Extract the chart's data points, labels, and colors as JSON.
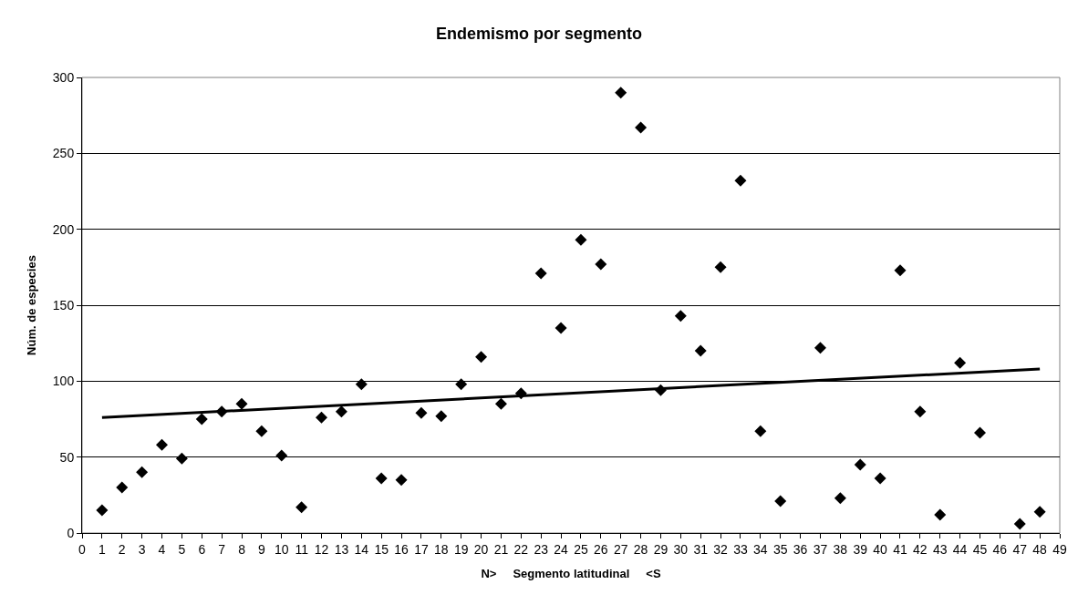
{
  "chart_data": {
    "type": "scatter",
    "title": "Endemismo por segmento",
    "xlabel": "N>     Segmento latitudinal     <S",
    "ylabel": "Núm. de especies",
    "xlim": [
      0,
      49
    ],
    "xticks": [
      0,
      1,
      2,
      3,
      4,
      5,
      6,
      7,
      8,
      9,
      10,
      11,
      12,
      13,
      14,
      15,
      16,
      17,
      18,
      19,
      20,
      21,
      22,
      23,
      24,
      25,
      26,
      27,
      28,
      29,
      30,
      31,
      32,
      33,
      34,
      35,
      36,
      37,
      38,
      39,
      40,
      41,
      42,
      43,
      44,
      45,
      46,
      47,
      48,
      49
    ],
    "ylim": [
      0,
      300
    ],
    "yticks": [
      0,
      50,
      100,
      150,
      200,
      250,
      300
    ],
    "grid": "y",
    "series": [
      {
        "marker": "diamond",
        "color": "#000000",
        "x": [
          1,
          2,
          3,
          4,
          5,
          6,
          7,
          8,
          9,
          10,
          11,
          12,
          13,
          14,
          15,
          16,
          17,
          18,
          19,
          20,
          21,
          22,
          23,
          24,
          25,
          26,
          27,
          28,
          29,
          30,
          31,
          32,
          33,
          34,
          35,
          37,
          38,
          39,
          40,
          41,
          42,
          43,
          44,
          45,
          47,
          48
        ],
        "values": [
          15,
          30,
          40,
          58,
          49,
          75,
          80,
          85,
          67,
          51,
          17,
          76,
          80,
          98,
          36,
          35,
          79,
          77,
          98,
          116,
          85,
          92,
          171,
          135,
          193,
          177,
          290,
          267,
          94,
          143,
          120,
          175,
          232,
          67,
          21,
          122,
          23,
          45,
          36,
          173,
          80,
          12,
          112,
          66,
          6,
          14
        ]
      },
      {
        "type": "line",
        "marker": "none",
        "color": "#000000",
        "x": [
          1,
          48
        ],
        "values": [
          76,
          108
        ]
      }
    ]
  }
}
